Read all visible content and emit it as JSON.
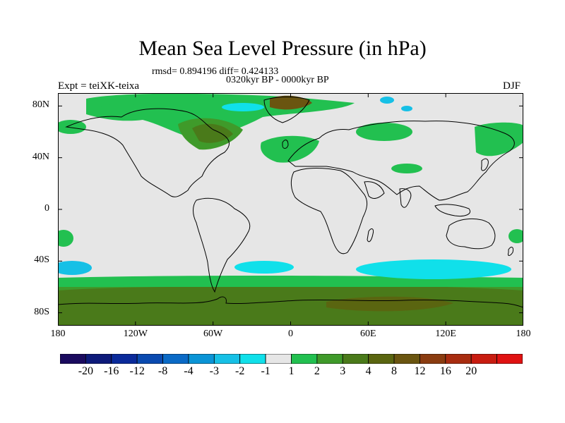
{
  "title": "Mean Sea Level Pressure (in hPa)",
  "stats": "rmsd= 0.894196 diff= 0.424133",
  "period": "0320kyr BP - 0000kyr BP",
  "experiment": "Expt = teiXK-teixa",
  "season": "DJF",
  "map": {
    "projection": "cylindrical equidistant",
    "lon_range": [
      -180,
      180
    ],
    "lat_range": [
      -90,
      90
    ],
    "lat_ticks": [
      {
        "value": 80,
        "label": "80N"
      },
      {
        "value": 40,
        "label": "40N"
      },
      {
        "value": 0,
        "label": "0"
      },
      {
        "value": -40,
        "label": "40S"
      },
      {
        "value": -80,
        "label": "80S"
      }
    ],
    "lon_ticks": [
      {
        "value": -180,
        "label": "180"
      },
      {
        "value": -120,
        "label": "120W"
      },
      {
        "value": -60,
        "label": "60W"
      },
      {
        "value": 0,
        "label": "0"
      },
      {
        "value": 60,
        "label": "60E"
      },
      {
        "value": 120,
        "label": "120E"
      },
      {
        "value": 180,
        "label": "180"
      }
    ],
    "background_color": "#e6e6e6",
    "coastline_color": "#000000"
  },
  "colorbar": {
    "colors": [
      "#1a0a5e",
      "#0d1a7a",
      "#0a2a9a",
      "#0a4ab0",
      "#0a6ac6",
      "#0a94d6",
      "#16c0e6",
      "#10e0ea",
      "#e6e6e6",
      "#22c050",
      "#3f9a2a",
      "#4a7a1a",
      "#5a6510",
      "#6a5510",
      "#8a3c10",
      "#a82c10",
      "#c81c10",
      "#e01212"
    ],
    "labels": [
      "-20",
      "-16",
      "-12",
      "-8",
      "-4",
      "-3",
      "-2",
      "-1",
      "1",
      "2",
      "3",
      "4",
      "8",
      "12",
      "16",
      "20"
    ]
  }
}
